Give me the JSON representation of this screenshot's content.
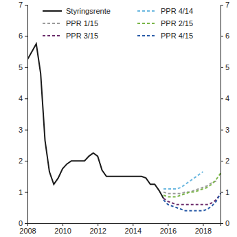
{
  "chart_data": {
    "type": "line",
    "x": [
      2008,
      2008.25,
      2008.5,
      2008.75,
      2009,
      2009.25,
      2009.5,
      2009.75,
      2010,
      2010.25,
      2010.5,
      2010.75,
      2011,
      2011.25,
      2011.5,
      2011.75,
      2012,
      2012.25,
      2012.5,
      2012.75,
      2013,
      2013.25,
      2013.5,
      2013.75,
      2014,
      2014.25,
      2014.5,
      2014.75,
      2015,
      2015.25,
      2015.5,
      2015.75,
      2016,
      2016.25,
      2016.5,
      2016.75,
      2017,
      2017.25,
      2017.5,
      2017.75,
      2018,
      2018.25,
      2018.5,
      2018.75,
      2019
    ],
    "series": [
      {
        "name": "Styringsrente",
        "color": "#1a1a1a",
        "line_style": "solid",
        "values": [
          5.25,
          5.5,
          5.75,
          4.8,
          2.65,
          1.65,
          1.25,
          1.45,
          1.75,
          1.9,
          2.0,
          2.0,
          2.0,
          2.0,
          2.15,
          2.25,
          2.15,
          1.7,
          1.5,
          1.5,
          1.5,
          1.5,
          1.5,
          1.5,
          1.5,
          1.5,
          1.5,
          1.45,
          1.25,
          1.25,
          1.05,
          0.8,
          null,
          null,
          null,
          null,
          null,
          null,
          null,
          null,
          null,
          null,
          null,
          null,
          null
        ]
      },
      {
        "name": "PPR 4/14",
        "color": "#6cb8e0",
        "line_style": "dashed",
        "values": [
          null,
          null,
          null,
          null,
          null,
          null,
          null,
          null,
          null,
          null,
          null,
          null,
          null,
          null,
          null,
          null,
          null,
          null,
          null,
          null,
          null,
          null,
          null,
          null,
          null,
          null,
          null,
          null,
          null,
          null,
          null,
          1.1,
          1.1,
          1.1,
          1.1,
          1.15,
          1.25,
          1.35,
          1.45,
          1.55,
          1.65,
          null,
          null,
          null,
          null
        ]
      },
      {
        "name": "PPR 1/15",
        "color": "#9b9b9b",
        "line_style": "dashed",
        "values": [
          null,
          null,
          null,
          null,
          null,
          null,
          null,
          null,
          null,
          null,
          null,
          null,
          null,
          null,
          null,
          null,
          null,
          null,
          null,
          null,
          null,
          null,
          null,
          null,
          null,
          null,
          null,
          null,
          null,
          null,
          null,
          1.0,
          0.95,
          0.95,
          0.95,
          0.95,
          1.0,
          1.0,
          1.05,
          1.1,
          1.15,
          1.2,
          1.3,
          1.35,
          null
        ]
      },
      {
        "name": "PPR 2/15",
        "color": "#7ab648",
        "line_style": "dashed",
        "values": [
          null,
          null,
          null,
          null,
          null,
          null,
          null,
          null,
          null,
          null,
          null,
          null,
          null,
          null,
          null,
          null,
          null,
          null,
          null,
          null,
          null,
          null,
          null,
          null,
          null,
          null,
          null,
          null,
          null,
          null,
          null,
          0.9,
          0.85,
          0.85,
          0.85,
          0.9,
          0.95,
          1.0,
          1.0,
          1.05,
          1.1,
          1.15,
          1.25,
          1.4,
          1.6
        ]
      },
      {
        "name": "PPR 3/15",
        "color": "#6b2c6b",
        "line_style": "dashed",
        "values": [
          null,
          null,
          null,
          null,
          null,
          null,
          null,
          null,
          null,
          null,
          null,
          null,
          null,
          null,
          null,
          null,
          null,
          null,
          null,
          null,
          null,
          null,
          null,
          null,
          null,
          null,
          null,
          null,
          null,
          null,
          null,
          0.8,
          0.7,
          0.65,
          0.6,
          0.6,
          0.6,
          0.6,
          0.6,
          0.6,
          0.6,
          0.6,
          0.65,
          0.75,
          0.95
        ]
      },
      {
        "name": "PPR 4/15",
        "color": "#2a5ca8",
        "line_style": "dashed",
        "values": [
          null,
          null,
          null,
          null,
          null,
          null,
          null,
          null,
          null,
          null,
          null,
          null,
          null,
          null,
          null,
          null,
          null,
          null,
          null,
          null,
          null,
          null,
          null,
          null,
          null,
          null,
          null,
          null,
          null,
          null,
          null,
          0.75,
          0.6,
          0.55,
          0.5,
          0.45,
          0.4,
          0.4,
          0.4,
          0.4,
          0.4,
          0.45,
          0.55,
          0.7,
          0.95
        ]
      }
    ],
    "xlim": [
      2008,
      2019
    ],
    "xticks": [
      2008,
      2010,
      2012,
      2014,
      2016,
      2018
    ],
    "ylim": [
      0,
      7
    ],
    "yticks": [
      0,
      1,
      2,
      3,
      4,
      5,
      6,
      7
    ],
    "y2lim": [
      0,
      7
    ],
    "y2ticks": [
      0,
      1,
      2,
      3,
      4,
      5,
      6,
      7
    ],
    "grid": false,
    "legend": "top-left"
  }
}
